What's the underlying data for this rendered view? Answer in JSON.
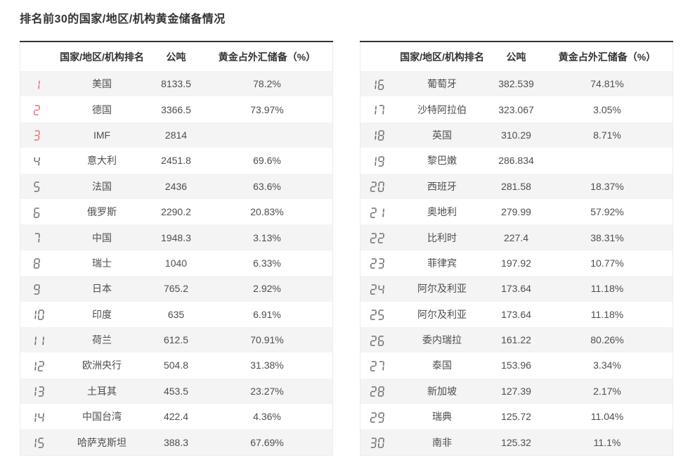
{
  "title": "排名前30的国家/地区/机构黄金储备情况",
  "table": {
    "columns": [
      "国家/地区/机构排名",
      "公吨",
      "黄金占外汇储备（%）"
    ],
    "rank_header": "",
    "left_rows": [
      {
        "rank": "1",
        "name": "美国",
        "tons": "8133.5",
        "pct": "78.2%"
      },
      {
        "rank": "2",
        "name": "德国",
        "tons": "3366.5",
        "pct": "73.97%"
      },
      {
        "rank": "3",
        "name": "IMF",
        "tons": "2814",
        "pct": ""
      },
      {
        "rank": "4",
        "name": "意大利",
        "tons": "2451.8",
        "pct": "69.6%"
      },
      {
        "rank": "5",
        "name": "法国",
        "tons": "2436",
        "pct": "63.6%"
      },
      {
        "rank": "6",
        "name": "俄罗斯",
        "tons": "2290.2",
        "pct": "20.83%"
      },
      {
        "rank": "7",
        "name": "中国",
        "tons": "1948.3",
        "pct": "3.13%"
      },
      {
        "rank": "8",
        "name": "瑞士",
        "tons": "1040",
        "pct": "6.33%"
      },
      {
        "rank": "9",
        "name": "日本",
        "tons": "765.2",
        "pct": "2.92%"
      },
      {
        "rank": "10",
        "name": "印度",
        "tons": "635",
        "pct": "6.91%"
      },
      {
        "rank": "11",
        "name": "荷兰",
        "tons": "612.5",
        "pct": "70.91%"
      },
      {
        "rank": "12",
        "name": "欧洲央行",
        "tons": "504.8",
        "pct": "31.38%"
      },
      {
        "rank": "13",
        "name": "土耳其",
        "tons": "453.5",
        "pct": "23.27%"
      },
      {
        "rank": "14",
        "name": "中国台湾",
        "tons": "422.4",
        "pct": "4.36%"
      },
      {
        "rank": "15",
        "name": "哈萨克斯坦",
        "tons": "388.3",
        "pct": "67.69%"
      }
    ],
    "right_rows": [
      {
        "rank": "16",
        "name": "葡萄牙",
        "tons": "382.539",
        "pct": "74.81%"
      },
      {
        "rank": "17",
        "name": "沙特阿拉伯",
        "tons": "323.067",
        "pct": "3.05%"
      },
      {
        "rank": "18",
        "name": "英国",
        "tons": "310.29",
        "pct": "8.71%"
      },
      {
        "rank": "19",
        "name": "黎巴嫩",
        "tons": "286.834",
        "pct": ""
      },
      {
        "rank": "20",
        "name": "西班牙",
        "tons": "281.58",
        "pct": "18.37%"
      },
      {
        "rank": "21",
        "name": "奥地利",
        "tons": "279.99",
        "pct": "57.92%"
      },
      {
        "rank": "22",
        "name": "比利时",
        "tons": "227.4",
        "pct": "38.31%"
      },
      {
        "rank": "23",
        "name": "菲律宾",
        "tons": "197.92",
        "pct": "10.77%"
      },
      {
        "rank": "24",
        "name": "阿尔及利亚",
        "tons": "173.64",
        "pct": "11.18%"
      },
      {
        "rank": "25",
        "name": "阿尔及利亚",
        "tons": "173.64",
        "pct": "11.18%"
      },
      {
        "rank": "26",
        "name": "委内瑞拉",
        "tons": "161.22",
        "pct": "80.26%"
      },
      {
        "rank": "27",
        "name": "泰国",
        "tons": "153.96",
        "pct": "3.34%"
      },
      {
        "rank": "28",
        "name": "新加坡",
        "tons": "127.39",
        "pct": "2.17%"
      },
      {
        "rank": "29",
        "name": "瑞典",
        "tons": "125.72",
        "pct": "11.04%"
      },
      {
        "rank": "30",
        "name": "南非",
        "tons": "125.32",
        "pct": "11.1%"
      }
    ]
  },
  "colors": {
    "rank_top3": "#f17070",
    "rank_normal": "#6e6e6e",
    "stripe": "#f4f4f5",
    "table_top_border": "#333333",
    "text": "#4e4e4e"
  }
}
